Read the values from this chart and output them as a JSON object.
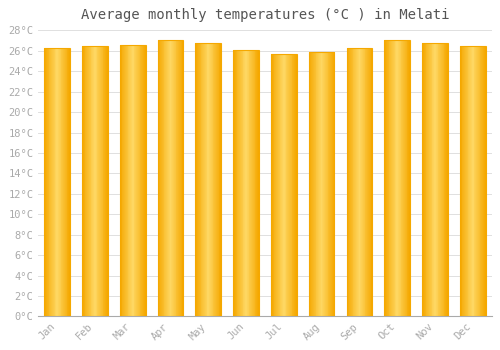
{
  "title": "Average monthly temperatures (°C ) in Melati",
  "months": [
    "Jan",
    "Feb",
    "Mar",
    "Apr",
    "May",
    "Jun",
    "Jul",
    "Aug",
    "Sep",
    "Oct",
    "Nov",
    "Dec"
  ],
  "values": [
    26.3,
    26.5,
    26.6,
    27.1,
    26.8,
    26.1,
    25.7,
    25.9,
    26.3,
    27.1,
    26.8,
    26.5
  ],
  "bar_color_center": "#FFD966",
  "bar_color_edge": "#F5A800",
  "background_color": "#FFFFFF",
  "grid_color": "#E0E0E0",
  "ylim": [
    0,
    28
  ],
  "ytick_step": 2,
  "title_fontsize": 10,
  "tick_fontsize": 7.5,
  "tick_color": "#AAAAAA",
  "spine_color": "#AAAAAA",
  "bar_width": 0.68
}
